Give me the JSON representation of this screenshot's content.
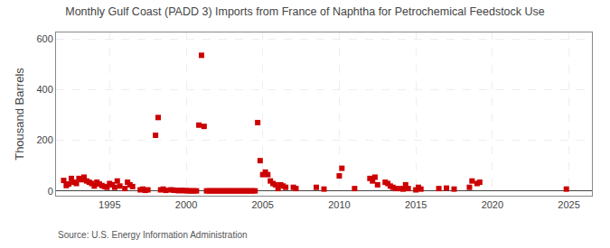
{
  "chart_data": {
    "type": "scatter",
    "title": "Monthly Gulf Coast (PADD 3) Imports from France of Naphtha for Petrochemical Feedstock Use",
    "ylabel": "Thousand Barrels",
    "annotations": [
      "Source: U.S. Energy Information Administration"
    ],
    "color": "#cc0000",
    "marker": "square",
    "grid": true,
    "xlim": [
      1991.5,
      2026.5
    ],
    "ylim": [
      -18,
      625
    ],
    "xticks": [
      1995,
      2000,
      2005,
      2010,
      2015,
      2020,
      2025
    ],
    "yticks": [
      0,
      200,
      400,
      600
    ],
    "x": [
      1992.0,
      1992.17,
      1992.33,
      1992.5,
      1992.67,
      1992.83,
      1993.0,
      1993.17,
      1993.33,
      1993.5,
      1993.67,
      1993.83,
      1994.0,
      1994.17,
      1994.33,
      1994.5,
      1994.67,
      1994.83,
      1995.0,
      1995.17,
      1995.33,
      1995.5,
      1995.67,
      1996.0,
      1996.17,
      1996.33,
      1996.5,
      1997.0,
      1997.17,
      1997.33,
      1997.5,
      1998.0,
      1998.17,
      1998.33,
      1998.5,
      1998.67,
      1999.0,
      1999.17,
      1999.33,
      1999.5,
      1999.67,
      1999.83,
      2000.0,
      2000.17,
      2000.33,
      2000.5,
      2000.67,
      2000.83,
      2001.0,
      2001.17,
      2001.33,
      2001.5,
      2001.67,
      2001.83,
      2002.0,
      2002.17,
      2002.33,
      2002.5,
      2002.67,
      2002.83,
      2003.0,
      2003.17,
      2003.33,
      2003.5,
      2003.67,
      2003.83,
      2004.0,
      2004.17,
      2004.33,
      2004.5,
      2004.67,
      2004.83,
      2005.0,
      2005.17,
      2005.33,
      2005.5,
      2005.67,
      2005.83,
      2006.0,
      2006.17,
      2006.33,
      2006.5,
      2007.0,
      2007.17,
      2008.5,
      2009.0,
      2010.0,
      2010.17,
      2011.0,
      2012.0,
      2012.17,
      2012.33,
      2012.5,
      2013.0,
      2013.17,
      2013.33,
      2013.5,
      2013.67,
      2014.0,
      2014.17,
      2014.33,
      2014.5,
      2015.0,
      2015.17,
      2015.33,
      2016.5,
      2017.0,
      2017.5,
      2018.5,
      2018.67,
      2019.0,
      2019.17,
      2024.83
    ],
    "values": [
      42,
      22,
      28,
      50,
      35,
      30,
      50,
      45,
      55,
      40,
      35,
      30,
      20,
      35,
      28,
      22,
      18,
      15,
      30,
      25,
      15,
      40,
      20,
      10,
      35,
      25,
      18,
      5,
      8,
      3,
      5,
      220,
      290,
      5,
      8,
      3,
      5,
      4,
      3,
      2,
      3,
      2,
      2,
      1,
      1,
      1,
      1,
      260,
      535,
      255,
      1,
      1,
      1,
      1,
      1,
      1,
      1,
      1,
      1,
      1,
      1,
      1,
      1,
      1,
      1,
      1,
      1,
      1,
      1,
      1,
      270,
      120,
      65,
      75,
      65,
      40,
      30,
      25,
      10,
      25,
      20,
      15,
      15,
      10,
      15,
      8,
      60,
      90,
      10,
      50,
      40,
      55,
      25,
      35,
      30,
      20,
      15,
      10,
      10,
      8,
      25,
      10,
      5,
      15,
      8,
      10,
      12,
      8,
      15,
      40,
      30,
      35,
      8
    ]
  }
}
